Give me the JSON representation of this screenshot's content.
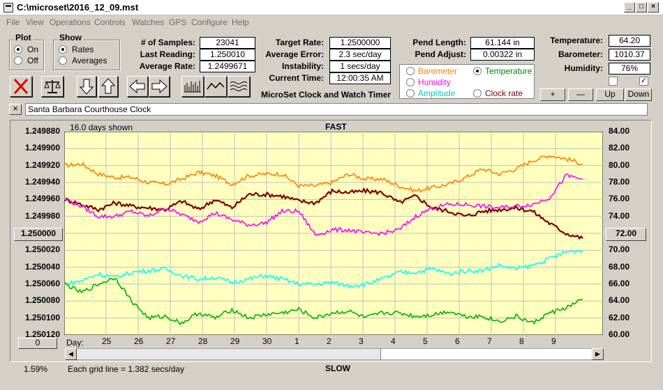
{
  "window": {
    "title": "C:\\microset\\2016_12_09.mst"
  },
  "menu": [
    "File",
    "View",
    "Operations",
    "Controls",
    "Watches",
    "GPS",
    "Configure",
    "Help"
  ],
  "plot_group": {
    "title": "Plot",
    "on": "On",
    "off": "Off",
    "selected": "On"
  },
  "show_group": {
    "title": "Show",
    "rates": "Rates",
    "averages": "Averages",
    "selected": "Rates"
  },
  "stats": {
    "samples_label": "# of Samples:",
    "samples": "23041",
    "last_reading_label": "Last Reading:",
    "last_reading": "1.250010",
    "avg_rate_label": "Average Rate:",
    "avg_rate": "1.2499671",
    "target_rate_label": "Target Rate:",
    "target_rate": "1.2500000",
    "avg_error_label": "Average Error:",
    "avg_error": "2.3 sec/day",
    "instability_label": "Instability:",
    "instability": "1 secs/day",
    "current_time_label": "Current Time:",
    "current_time": "12:00:35 AM",
    "pend_length_label": "Pend Length:",
    "pend_length": "61.144 in",
    "pend_adjust_label": "Pend Adjust:",
    "pend_adjust": "0.00322 in",
    "temperature_label": "Temperature:",
    "temperature": "64.20",
    "barometer_label": "Barometer:",
    "barometer": "1010.37",
    "humidity_label": "Humidity:",
    "humidity": "76%"
  },
  "app_subtitle": "MicroSet Clock and Watch Timer",
  "sensor_options": {
    "barometer": "Barometer",
    "temperature": "Temperature",
    "humidity": "Humidity",
    "amplitude": "Amplitude",
    "clock_rate": "Clock rate",
    "selected": "Temperature",
    "colors": {
      "barometer": "#ff8000",
      "temperature": "#008000",
      "humidity": "#ff00ff",
      "amplitude": "#00ffff",
      "clock_rate": "#800000"
    }
  },
  "adjust_buttons": {
    "plus": "+",
    "minus": "—",
    "up": "Up",
    "down": "Down"
  },
  "checkboxes": [
    {
      "checked": false
    },
    {
      "checked": true,
      "mark": "✓"
    }
  ],
  "clock_name": "Santa Barbara Courthouse Clock",
  "close_glyph": "×",
  "toolbar_icons": [
    "stop-icon",
    "scale-icon",
    "arrow-down-icon",
    "arrow-up-icon",
    "arrow-left-icon",
    "arrow-right-icon",
    "bars-view-icon",
    "wave-view-icon",
    "waves-view-icon"
  ],
  "chart_data": {
    "type": "line",
    "header_left": "16.0 days shown",
    "top_label": "FAST",
    "bottom_label": "SLOW",
    "grid_note": "Each grid line = 1.382 secs/day",
    "percent": "1.59%",
    "left_button": "1.250000",
    "right_button": "72.00",
    "bottom_left_button": "0",
    "day_label": "Day:",
    "y_left_ticks": [
      "1.249880",
      "1.249900",
      "1.249920",
      "1.249940",
      "1.249960",
      "1.249980",
      "1.250000",
      "1.250020",
      "1.250040",
      "1.250060",
      "1.250080",
      "1.250100",
      "1.250120"
    ],
    "y_right_ticks": [
      "84.00",
      "82.00",
      "80.00",
      "78.00",
      "76.00",
      "74.00",
      "72.00",
      "70.00",
      "68.00",
      "66.00",
      "64.00",
      "62.00",
      "60.00"
    ],
    "x_ticks": [
      "25",
      "26",
      "27",
      "28",
      "29",
      "30",
      "1",
      "2",
      "3",
      "4",
      "5",
      "6",
      "7",
      "8",
      "9"
    ],
    "y_right_range": [
      60,
      84
    ],
    "series": [
      {
        "key": "barometer",
        "color": "#ff8000",
        "x": [
          0,
          0.5,
          1,
          1.5,
          2,
          2.5,
          3,
          3.5,
          4,
          4.5,
          5,
          5.5,
          6,
          6.5,
          7,
          7.5,
          8,
          8.5,
          9,
          9.5,
          10,
          10.5,
          11,
          11.5,
          12,
          12.5,
          13,
          13.5,
          14,
          14.5,
          15,
          15.5
        ],
        "y": [
          80.0,
          80.2,
          79.0,
          78.6,
          78.6,
          78.0,
          77.8,
          78.4,
          79.2,
          78.8,
          77.8,
          78.8,
          79.0,
          79.0,
          77.6,
          77.6,
          78.0,
          79.0,
          78.4,
          78.4,
          77.6,
          77.0,
          77.4,
          77.8,
          78.6,
          79.6,
          79.0,
          79.6,
          80.6,
          81.2,
          80.8,
          80.2
        ]
      },
      {
        "key": "clock_rate",
        "color": "#800000",
        "x": [
          0,
          0.5,
          1,
          1.5,
          2,
          2.5,
          3,
          3.5,
          4,
          4.5,
          5,
          5.5,
          6,
          6.5,
          7,
          7.5,
          8,
          8.5,
          9,
          9.5,
          10,
          10.5,
          11,
          11.5,
          12,
          12.5,
          13,
          13.5,
          14,
          14.5,
          15,
          15.5
        ],
        "y": [
          76.0,
          75.4,
          74.8,
          75.6,
          75.2,
          75.0,
          74.8,
          75.8,
          74.8,
          76.0,
          75.0,
          76.6,
          76.6,
          76.4,
          75.8,
          75.6,
          77.0,
          76.8,
          77.0,
          76.8,
          75.6,
          76.4,
          75.0,
          74.6,
          74.0,
          74.6,
          74.8,
          75.0,
          74.6,
          73.2,
          72.0,
          71.4
        ]
      },
      {
        "key": "humidity",
        "color": "#ff00ff",
        "x": [
          0,
          0.5,
          1,
          1.5,
          2,
          2.5,
          3,
          3.5,
          4,
          4.5,
          5,
          5.5,
          6,
          6.5,
          7,
          7.5,
          8,
          8.5,
          9,
          9.5,
          10,
          10.5,
          11,
          11.5,
          12,
          12.5,
          13,
          13.5,
          14,
          14.5,
          15,
          15.5
        ],
        "y": [
          76.0,
          75.2,
          74.0,
          74.0,
          74.6,
          74.0,
          75.0,
          74.2,
          73.4,
          74.4,
          73.6,
          73.0,
          73.2,
          74.6,
          74.6,
          71.8,
          72.4,
          72.4,
          72.0,
          72.0,
          72.4,
          74.0,
          75.0,
          75.4,
          75.4,
          75.2,
          75.0,
          75.2,
          75.4,
          76.2,
          78.8,
          78.4
        ]
      },
      {
        "key": "amplitude",
        "color": "#00ffff",
        "x": [
          0,
          0.5,
          1,
          1.5,
          2,
          2.5,
          3,
          3.5,
          4,
          4.5,
          5,
          5.5,
          6,
          6.5,
          7,
          7.5,
          8,
          8.5,
          9,
          9.5,
          10,
          10.5,
          11,
          11.5,
          12,
          12.5,
          13,
          13.5,
          14,
          14.5,
          15,
          15.5
        ],
        "y": [
          66.0,
          66.4,
          67.2,
          66.8,
          67.4,
          67.6,
          67.8,
          67.0,
          66.6,
          66.8,
          66.2,
          66.6,
          67.0,
          66.6,
          66.0,
          66.0,
          66.2,
          65.8,
          66.0,
          66.6,
          67.4,
          67.4,
          67.8,
          67.2,
          67.6,
          67.6,
          68.2,
          67.8,
          68.2,
          69.0,
          69.8,
          70.0
        ]
      },
      {
        "key": "temperature",
        "color": "#00b000",
        "x": [
          0,
          0.5,
          1,
          1.5,
          2,
          2.5,
          3,
          3.5,
          4,
          4.5,
          5,
          5.5,
          6,
          6.5,
          7,
          7.5,
          8,
          8.5,
          9,
          9.5,
          10,
          10.5,
          11,
          11.5,
          12,
          12.5,
          13,
          13.5,
          14,
          14.5,
          15,
          15.5
        ],
        "y": [
          66.0,
          65.0,
          66.0,
          66.8,
          64.0,
          62.0,
          62.2,
          61.4,
          62.6,
          62.0,
          63.0,
          62.0,
          62.4,
          62.6,
          63.0,
          62.0,
          62.6,
          62.8,
          62.0,
          62.6,
          62.6,
          62.2,
          62.4,
          62.8,
          62.2,
          62.2,
          61.6,
          62.2,
          61.4,
          62.6,
          63.2,
          64.2
        ]
      }
    ]
  }
}
